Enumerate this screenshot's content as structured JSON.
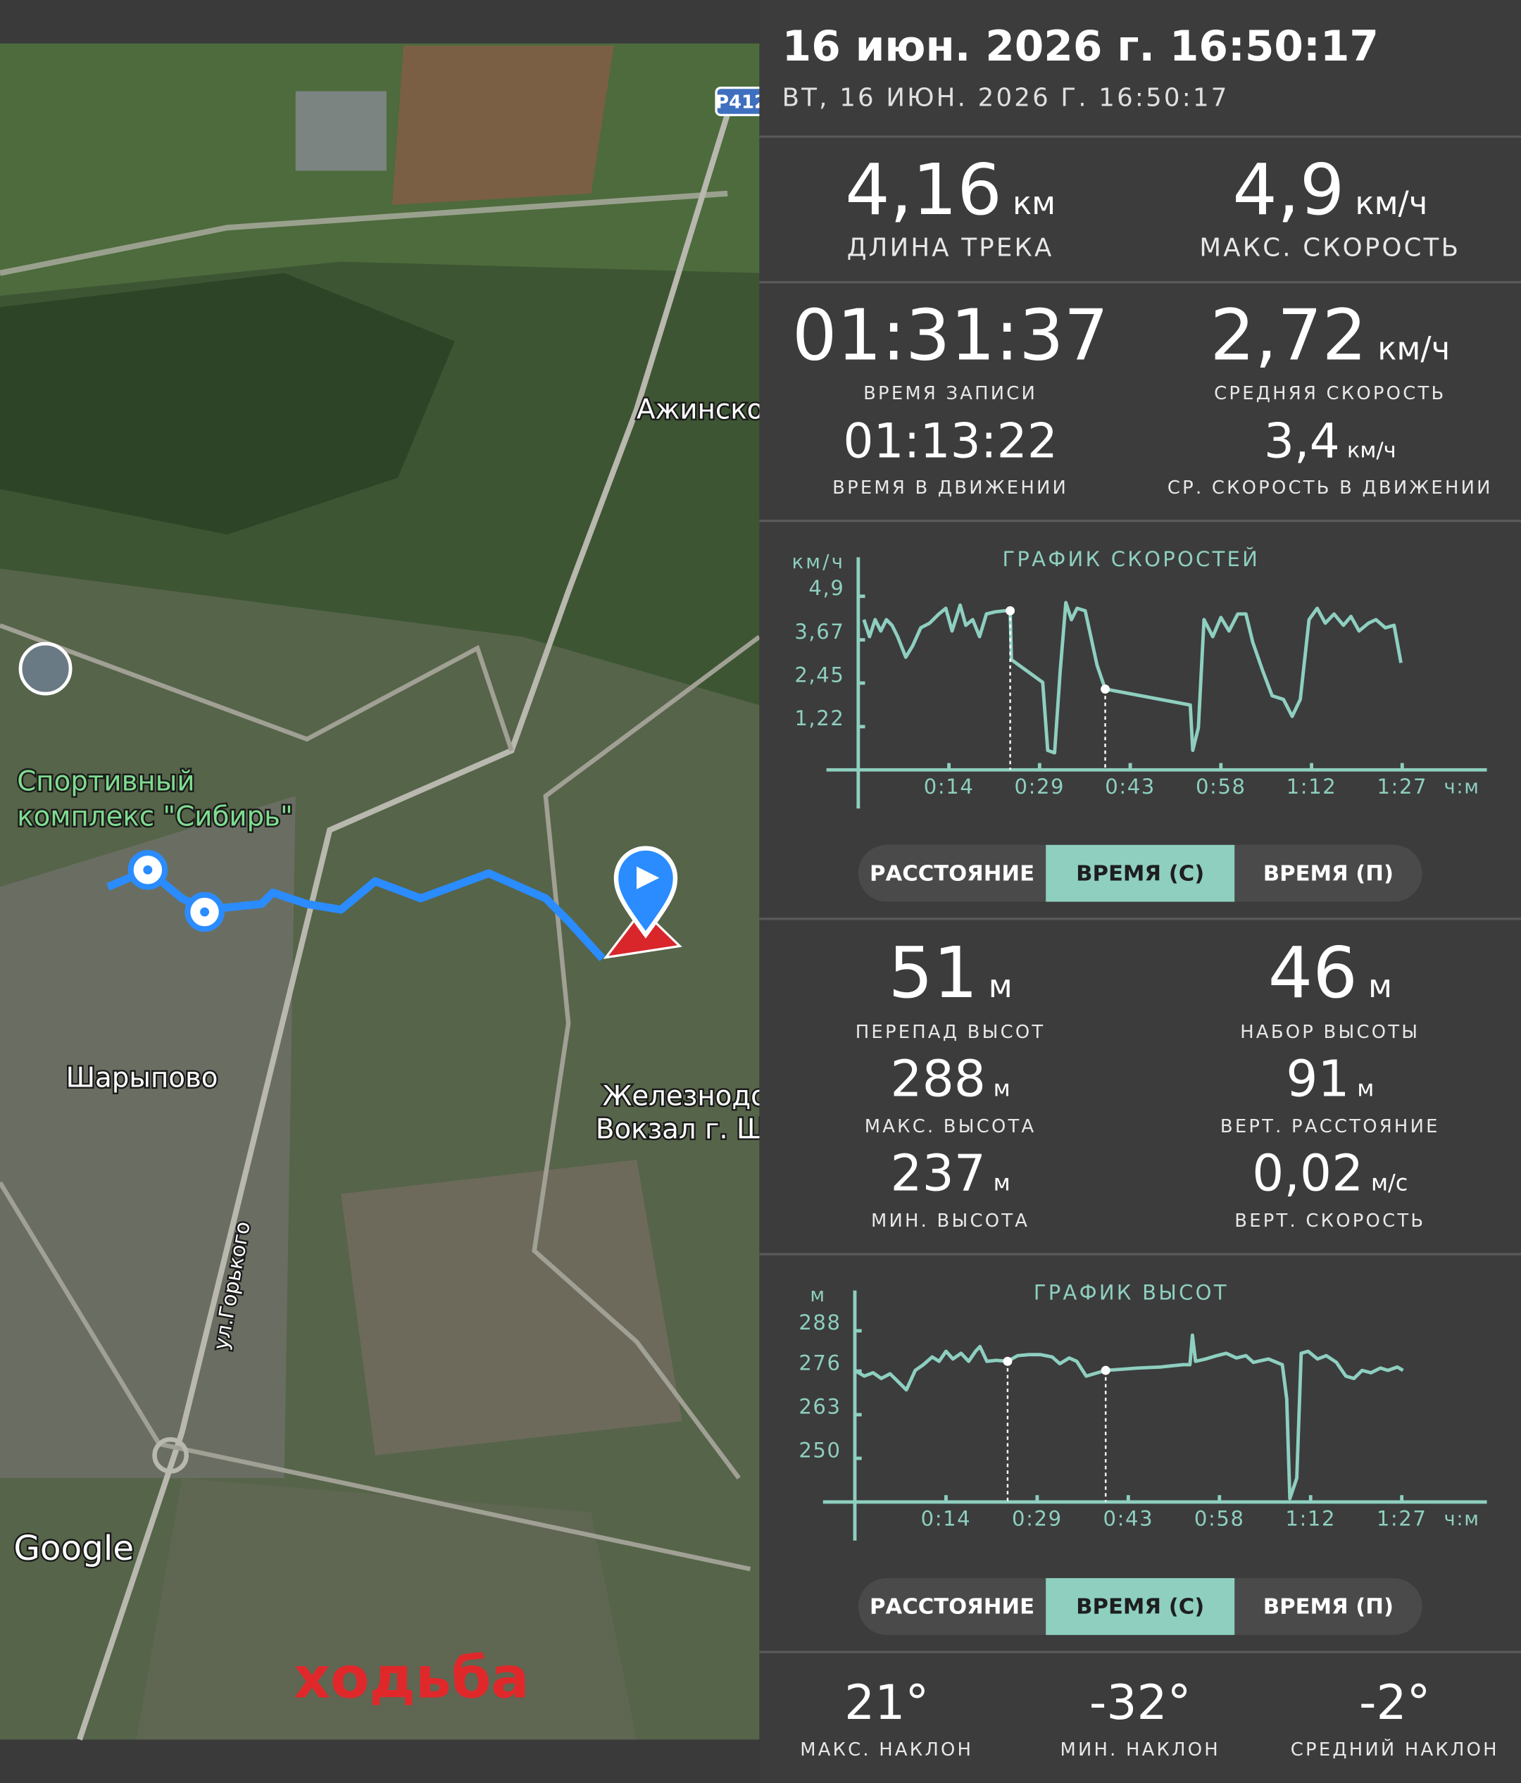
{
  "header": {
    "title": "16 июн. 2026 г. 16:50:17",
    "subtitle": "ВТ, 16 ИЮН. 2026 Г. 16:50:17"
  },
  "map": {
    "road_badge": "Р412",
    "labels": [
      "Ажинско",
      "Спортивный",
      "комплекс \"Сибирь\"",
      "Шарыпово",
      "Железнодор",
      "Вокзал г. Ша",
      "ул.Горького"
    ],
    "logo": "Google",
    "activity": "ходьба"
  },
  "track_stats": [
    {
      "value": "4,16",
      "unit": "км",
      "label": "ДЛИНА ТРЕКА"
    },
    {
      "value": "4,9",
      "unit": "км/ч",
      "label": "МАКС. СКОРОСТЬ"
    },
    {
      "value": "01:31:37",
      "label": "ВРЕМЯ ЗАПИСИ"
    },
    {
      "value": "2,72",
      "unit": "км/ч",
      "label": "СРЕДНЯЯ СКОРОСТЬ"
    },
    {
      "value": "01:13:22",
      "label": "ВРЕМЯ В ДВИЖЕНИИ"
    },
    {
      "value": "3,4",
      "unit": "км/ч",
      "label": "СР. СКОРОСТЬ В ДВИЖЕНИИ"
    }
  ],
  "chart_data": [
    {
      "type": "line",
      "title": "ГРАФИК СКОРОСТЕЙ",
      "y_label": "км/ч",
      "x_label": "ч:м",
      "color": "#8ecfc0",
      "grid": false,
      "x": [
        0.9,
        1.8,
        2.7,
        3.6,
        4.5,
        5.4,
        6.3,
        7.6,
        8.7,
        10.0,
        11.4,
        12.9,
        14.0,
        15.0,
        16.3,
        17.2,
        18.3,
        19.4,
        20.5,
        21.9,
        23.4,
        24.3,
        24.5,
        29.5,
        30.3,
        31.4,
        32.3,
        33.2,
        34.1,
        35.0,
        36.3,
        37.2,
        38.2,
        39.5,
        53.1,
        53.5,
        54.4,
        55.3,
        56.7,
        58.0,
        59.3,
        60.7,
        62.0,
        63.1,
        64.7,
        66.2,
        68.0,
        69.4,
        70.7,
        72.1,
        73.4,
        74.7,
        76.1,
        77.6,
        78.8,
        80.1,
        81.6,
        82.8,
        84.3,
        85.7,
        86.8
      ],
      "values": [
        4.24,
        3.76,
        4.24,
        3.92,
        4.24,
        4.08,
        3.76,
        3.18,
        3.5,
        4.01,
        4.14,
        4.4,
        4.56,
        3.92,
        4.65,
        4.08,
        4.24,
        3.76,
        4.4,
        4.46,
        4.49,
        4.49,
        3.11,
        2.47,
        0.55,
        0.48,
        2.79,
        4.72,
        4.24,
        4.56,
        4.49,
        3.76,
        2.95,
        2.28,
        1.83,
        0.55,
        1.19,
        4.24,
        3.76,
        4.3,
        3.92,
        4.4,
        4.4,
        3.6,
        2.79,
        2.09,
        1.99,
        1.51,
        1.99,
        4.24,
        4.56,
        4.14,
        4.4,
        4.08,
        4.33,
        3.92,
        4.14,
        4.24,
        4.01,
        4.08,
        3.02
      ],
      "markers": [
        21,
        33
      ],
      "xlim": [
        0,
        100
      ],
      "ylim": [
        0,
        6
      ],
      "xticks": [
        {
          "value": 14.5,
          "label": "0:14"
        },
        {
          "value": 29,
          "label": "0:29"
        },
        {
          "value": 43.5,
          "label": "0:43"
        },
        {
          "value": 58,
          "label": "0:58"
        },
        {
          "value": 72.5,
          "label": "1:12"
        },
        {
          "value": 87,
          "label": "1:27"
        }
      ],
      "yticks": [
        {
          "value": 4.9,
          "label": "4,9"
        },
        {
          "value": 3.67,
          "label": "3,67"
        },
        {
          "value": 2.45,
          "label": "2,45"
        },
        {
          "value": 1.22,
          "label": "1,22"
        }
      ],
      "tabs": [
        "РАССТОЯНИЕ",
        "ВРЕМЯ (С)",
        "ВРЕМЯ (П)"
      ],
      "active_tab": 1
    },
    {
      "type": "line",
      "title": "ГРАФИК ВЫСОТ",
      "y_label": "м",
      "x_label": "ч:м",
      "color": "#8ecfc0",
      "grid": false,
      "x": [
        0,
        1.5,
        2.9,
        4.2,
        5.6,
        6.9,
        8.2,
        9.6,
        10.9,
        12.3,
        13.4,
        14.5,
        15.6,
        16.9,
        18.1,
        19.2,
        19.9,
        21.0,
        22.5,
        24.3,
        25.9,
        27.7,
        29.5,
        31.4,
        32.6,
        34.1,
        35.3,
        36.8,
        38.6,
        39.9,
        42.2,
        45.0,
        48.6,
        52.2,
        53.3,
        53.7,
        54.2,
        55.8,
        57.6,
        59.1,
        60.7,
        62.2,
        63.4,
        65.8,
        68.0,
        68.7,
        69.2,
        70.3,
        71.0,
        72.1,
        73.6,
        75.0,
        76.6,
        78.1,
        79.4,
        80.7,
        82.1,
        83.6,
        84.8,
        86.3,
        87.2
      ],
      "values": [
        276.2,
        274.5,
        275.5,
        273.8,
        275.2,
        272.8,
        270.4,
        276.2,
        277.9,
        280.2,
        278.9,
        281.9,
        279.6,
        281.3,
        278.9,
        281.9,
        283.3,
        278.9,
        279.2,
        278.9,
        280.6,
        280.9,
        280.9,
        280.2,
        278.2,
        279.9,
        278.9,
        274.5,
        275.5,
        276.2,
        276.5,
        276.9,
        277.2,
        277.9,
        277.9,
        286.7,
        278.9,
        279.6,
        280.6,
        281.3,
        279.9,
        280.6,
        278.6,
        279.6,
        277.9,
        267.7,
        238.0,
        244.1,
        281.3,
        281.9,
        279.6,
        280.6,
        278.6,
        274.5,
        273.8,
        276.2,
        275.5,
        276.9,
        276.2,
        277.2,
        276.2
      ],
      "markers": [
        19,
        29
      ],
      "xlim": [
        0,
        100
      ],
      "ylim": [
        237,
        300
      ],
      "xticks": [
        {
          "value": 14.5,
          "label": "0:14"
        },
        {
          "value": 29,
          "label": "0:29"
        },
        {
          "value": 43.5,
          "label": "0:43"
        },
        {
          "value": 58,
          "label": "0:58"
        },
        {
          "value": 72.5,
          "label": "1:12"
        },
        {
          "value": 87,
          "label": "1:27"
        }
      ],
      "yticks": [
        288,
        276,
        263,
        250
      ],
      "tabs": [
        "РАССТОЯНИЕ",
        "ВРЕМЯ (С)",
        "ВРЕМЯ (П)"
      ],
      "active_tab": 1
    }
  ],
  "altitude_stats": [
    {
      "value": "51",
      "unit": "м",
      "label": "ПЕРЕПАД ВЫСОТ"
    },
    {
      "value": "46",
      "unit": "м",
      "label": "НАБОР ВЫСОТЫ"
    },
    {
      "value": "288",
      "unit": "м",
      "label": "МАКС. ВЫСОТА"
    },
    {
      "value": "91",
      "unit": "м",
      "label": "ВЕРТ. РАССТОЯНИЕ"
    },
    {
      "value": "237",
      "unit": "м",
      "label": "МИН. ВЫСОТА"
    },
    {
      "value": "0,02",
      "unit": "м/с",
      "label": "ВЕРТ. СКОРОСТЬ"
    }
  ],
  "slope_stats": [
    {
      "value": "21°",
      "label": "МАКС. НАКЛОН"
    },
    {
      "value": "-32°",
      "label": "МИН. НАКЛОН"
    },
    {
      "value": "-2°",
      "label": "СРЕДНИЙ НАКЛОН"
    }
  ]
}
